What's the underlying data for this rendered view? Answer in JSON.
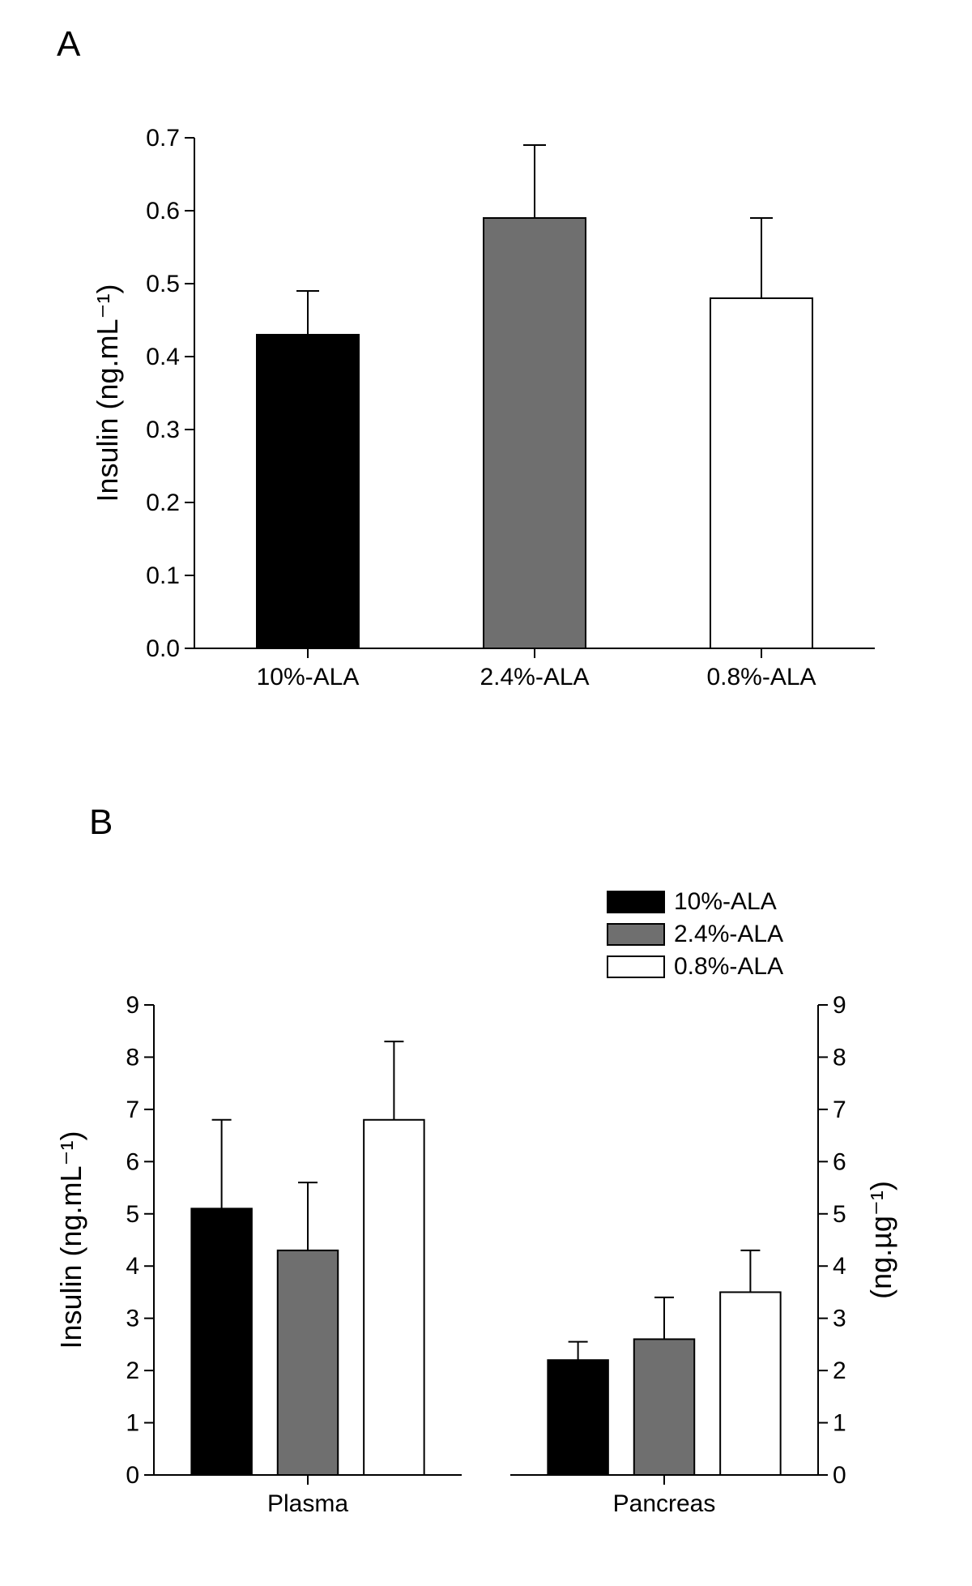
{
  "panelA": {
    "label": "A",
    "label_fontsize": 44,
    "type": "bar",
    "categories": [
      "10%-ALA",
      "2.4%-ALA",
      "0.8%-ALA"
    ],
    "values": [
      0.43,
      0.59,
      0.48
    ],
    "errors": [
      0.06,
      0.1,
      0.11
    ],
    "bar_colors": [
      "#000000",
      "#6f6f6f",
      "#ffffff"
    ],
    "bar_border": "#000000",
    "bar_width": 0.45,
    "ylabel": "Insulin (ng.mL⁻¹)",
    "ylabel_fontsize": 36,
    "ylim": [
      0.0,
      0.7
    ],
    "ytick_step": 0.1,
    "tick_fontsize": 30,
    "axis_color": "#000000",
    "axis_width": 2,
    "errorbar_width": 2,
    "errorbar_cap": 14,
    "background_color": "#ffffff"
  },
  "panelB": {
    "label": "B",
    "label_fontsize": 44,
    "type": "grouped-bar-dual-axis",
    "groups": [
      "Plasma",
      "Pancreas"
    ],
    "series": [
      {
        "name": "10%-ALA",
        "color": "#000000"
      },
      {
        "name": "2.4%-ALA",
        "color": "#6f6f6f"
      },
      {
        "name": "0.8%-ALA",
        "color": "#ffffff"
      }
    ],
    "data": {
      "Plasma": {
        "values": [
          5.1,
          4.3,
          6.8
        ],
        "errors": [
          1.7,
          1.3,
          1.5
        ]
      },
      "Pancreas": {
        "values": [
          2.2,
          2.6,
          3.5
        ],
        "errors": [
          0.35,
          0.8,
          0.8
        ]
      }
    },
    "bar_border": "#000000",
    "bar_width": 0.7,
    "ylabel_left": "Insulin (ng.mL⁻¹)",
    "ylabel_right": "(ng.µg⁻¹)",
    "ylabel_fontsize": 36,
    "ylim": [
      0,
      9
    ],
    "ytick_step": 1,
    "tick_fontsize": 30,
    "axis_color": "#000000",
    "axis_width": 2,
    "errorbar_width": 2,
    "errorbar_cap": 12,
    "background_color": "#ffffff",
    "legend": {
      "position": "top-right",
      "items": [
        "10%-ALA",
        "2.4%-ALA",
        "0.8%-ALA"
      ],
      "swatch_colors": [
        "#000000",
        "#6f6f6f",
        "#ffffff"
      ],
      "fontsize": 30,
      "swatch_w": 70,
      "swatch_h": 26
    }
  }
}
